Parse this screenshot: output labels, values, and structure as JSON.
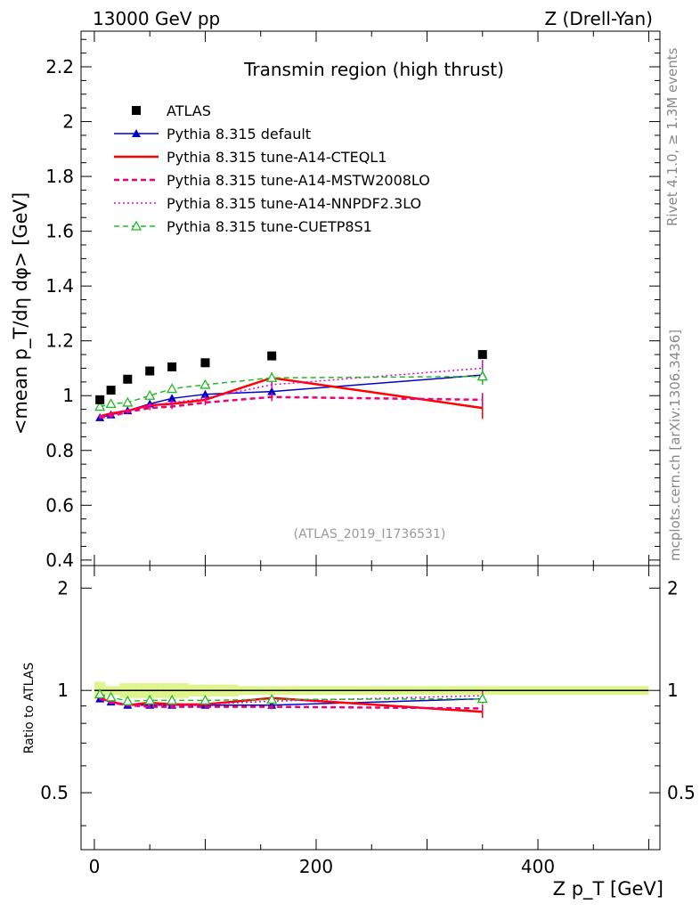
{
  "header": {
    "left": "13000 GeV pp",
    "right": "Z (Drell-Yan)"
  },
  "side": {
    "rivet": "Rivet 4.1.0, ≥ 1.3M events",
    "mcplots": "mcplots.cern.ch [arXiv:1306.3436]"
  },
  "chart_data": [
    {
      "type": "line",
      "title": "Transmin region (high thrust)",
      "watermark": "(ATLAS_2019_I1736531)",
      "ylabel": "<mean p_T/dη dφ> [GeV]",
      "xlabel": "Z p_T [GeV]",
      "xlim": [
        -12,
        510
      ],
      "ylim": [
        0.38,
        2.33
      ],
      "yticks": [
        0.4,
        0.6,
        0.8,
        1,
        1.2,
        1.4,
        1.6,
        1.8,
        2,
        2.2
      ],
      "ytick_labels": [
        "0.4",
        "0.6",
        "0.8",
        "1",
        "1.2",
        "1.4",
        "1.6",
        "1.8",
        "2",
        "2.2"
      ],
      "legend": [
        {
          "label": "ATLAS",
          "color": "#000000",
          "style": "marker-square"
        },
        {
          "label": "Pythia 8.315 default",
          "color": "#0000cc",
          "style": "solid-triangle"
        },
        {
          "label": "Pythia 8.315 tune-A14-CTEQL1",
          "color": "#ff0000",
          "style": "solid-thick"
        },
        {
          "label": "Pythia 8.315 tune-A14-MSTW2008LO",
          "color": "#ee0077",
          "style": "dashed"
        },
        {
          "label": "Pythia 8.315 tune-A14-NNPDF2.3LO",
          "color": "#ee00cc",
          "style": "dotted"
        },
        {
          "label": "Pythia 8.315 tune-CUETP8S1",
          "color": "#22bb22",
          "style": "dashed-open-triangle"
        }
      ],
      "x": [
        5,
        15,
        30,
        50,
        70,
        100,
        160,
        350
      ],
      "series": [
        {
          "name": "ATLAS",
          "color": "#000000",
          "values": [
            0.985,
            1.02,
            1.06,
            1.09,
            1.105,
            1.12,
            1.145,
            1.15
          ]
        },
        {
          "name": "Pythia 8.315 default",
          "color": "#0000cc",
          "values": [
            0.92,
            0.93,
            0.945,
            0.97,
            0.99,
            1.005,
            1.015,
            1.075
          ],
          "err": [
            0.006,
            0.006,
            0.006,
            0.008,
            0.009,
            0.01,
            0.015,
            0.03
          ]
        },
        {
          "name": "Pythia 8.315 tune-A14-CTEQL1",
          "color": "#ff0000",
          "values": [
            0.925,
            0.935,
            0.945,
            0.965,
            0.97,
            0.985,
            1.065,
            0.955
          ],
          "err": [
            0.006,
            0.006,
            0.006,
            0.008,
            0.009,
            0.012,
            0.02,
            0.04
          ]
        },
        {
          "name": "Pythia 8.315 tune-A14-MSTW2008LO",
          "color": "#ee0077",
          "values": [
            0.92,
            0.925,
            0.94,
            0.955,
            0.96,
            0.975,
            0.995,
            0.985
          ],
          "err": [
            0.006,
            0.006,
            0.006,
            0.008,
            0.009,
            0.01,
            0.015,
            0.025
          ]
        },
        {
          "name": "Pythia 8.315 tune-A14-NNPDF2.3LO",
          "color": "#ee00cc",
          "values": [
            0.925,
            0.93,
            0.945,
            0.965,
            0.975,
            0.99,
            1.04,
            1.1
          ],
          "err": [
            0.006,
            0.006,
            0.006,
            0.008,
            0.009,
            0.01,
            0.015,
            0.03
          ]
        },
        {
          "name": "Pythia 8.315 tune-CUETP8S1",
          "color": "#22bb22",
          "values": [
            0.96,
            0.97,
            0.975,
            1.0,
            1.025,
            1.04,
            1.065,
            1.07
          ],
          "err": [
            0.006,
            0.006,
            0.006,
            0.008,
            0.009,
            0.01,
            0.015,
            0.03
          ]
        }
      ]
    },
    {
      "type": "line",
      "title": "",
      "ylabel": "Ratio to ATLAS",
      "xlabel": "Z p_T [GeV]",
      "xlim": [
        -12,
        510
      ],
      "ylim": [
        0.34,
        2.33
      ],
      "yscale": "log",
      "yticks": [
        0.5,
        1,
        2
      ],
      "ytick_labels": [
        "0.5",
        "1",
        "2"
      ],
      "xticks": [
        0,
        200,
        400
      ],
      "xtick_labels": [
        "0",
        "200",
        "400"
      ],
      "band": {
        "color": "#d8f37a",
        "values": [
          0.06,
          0.03,
          0.05,
          0.05,
          0.05,
          0.04,
          0.03,
          0.03
        ]
      },
      "x": [
        5,
        15,
        30,
        50,
        70,
        100,
        160,
        350
      ],
      "series": [
        {
          "name": "Pythia 8.315 default",
          "color": "#0000cc",
          "values": [
            0.945,
            0.925,
            0.905,
            0.905,
            0.905,
            0.905,
            0.905,
            0.945
          ],
          "err": [
            0.008,
            0.008,
            0.008,
            0.01,
            0.01,
            0.012,
            0.015,
            0.03
          ]
        },
        {
          "name": "Pythia 8.315 tune-A14-CTEQL1",
          "color": "#ff0000",
          "values": [
            0.95,
            0.925,
            0.905,
            0.92,
            0.91,
            0.91,
            0.95,
            0.865
          ],
          "err": [
            0.008,
            0.008,
            0.008,
            0.01,
            0.01,
            0.012,
            0.02,
            0.035
          ]
        },
        {
          "name": "Pythia 8.315 tune-A14-MSTW2008LO",
          "color": "#ee0077",
          "values": [
            0.945,
            0.92,
            0.905,
            0.895,
            0.895,
            0.895,
            0.895,
            0.885
          ],
          "err": [
            0.008,
            0.008,
            0.008,
            0.01,
            0.01,
            0.012,
            0.015,
            0.025
          ]
        },
        {
          "name": "Pythia 8.315 tune-A14-NNPDF2.3LO",
          "color": "#ee00cc",
          "values": [
            0.95,
            0.925,
            0.905,
            0.905,
            0.905,
            0.91,
            0.93,
            0.965
          ],
          "err": [
            0.008,
            0.008,
            0.008,
            0.01,
            0.01,
            0.012,
            0.015,
            0.03
          ]
        },
        {
          "name": "Pythia 8.315 tune-CUETP8S1",
          "color": "#22bb22",
          "values": [
            0.975,
            0.955,
            0.93,
            0.935,
            0.935,
            0.935,
            0.94,
            0.945
          ],
          "err": [
            0.008,
            0.008,
            0.008,
            0.01,
            0.01,
            0.012,
            0.015,
            0.03
          ]
        }
      ]
    }
  ]
}
